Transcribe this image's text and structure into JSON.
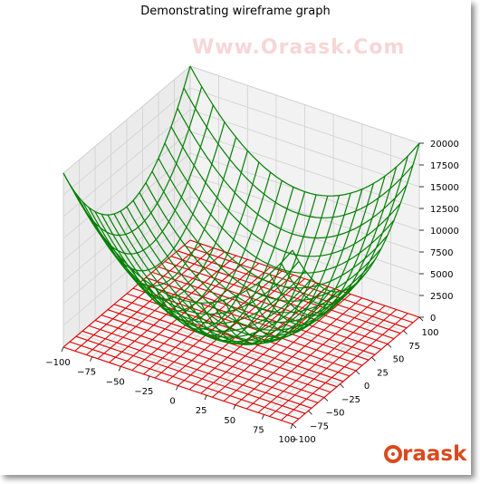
{
  "chart_data": {
    "type": "wireframe-3d",
    "title": "Demonstrating wireframe graph",
    "xlabel": "",
    "ylabel": "",
    "zlabel": "",
    "xlim": [
      -100,
      100
    ],
    "ylim": [
      -100,
      100
    ],
    "zlim": [
      0,
      20000
    ],
    "x_ticks": [
      "−100",
      "−75",
      "−50",
      "−25",
      "0",
      "25",
      "50",
      "75",
      "100"
    ],
    "y_ticks": [
      "−100",
      "−75",
      "−50",
      "−25",
      "0",
      "25",
      "50",
      "75",
      "100"
    ],
    "z_ticks": [
      "0",
      "2500",
      "5000",
      "7500",
      "10000",
      "12500",
      "15000",
      "17500",
      "20000"
    ],
    "grid": true,
    "series": [
      {
        "surface": "z = x^2 + y^2",
        "color": "#008000"
      },
      {
        "surface": "z = 0",
        "color": "#e00000"
      }
    ]
  },
  "watermark": "Www.Oraask.Com",
  "brand": "raask",
  "colors": {
    "surface_green": "#008000",
    "plane_red": "#e00000",
    "brand": "#d94a1e"
  }
}
